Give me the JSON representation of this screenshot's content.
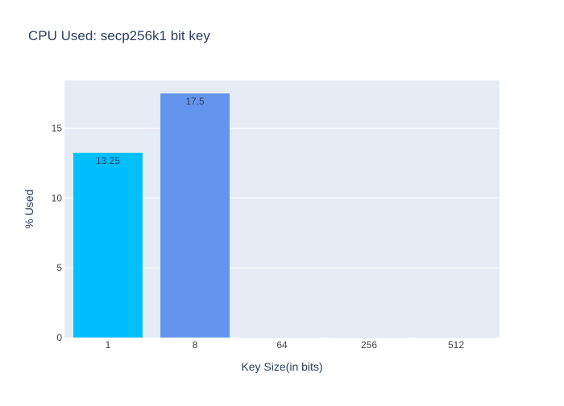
{
  "chart_data": {
    "type": "bar",
    "title": "CPU Used: secp256k1 bit key",
    "xlabel": "Key Size(in bits)",
    "ylabel": "% Used",
    "categories": [
      "1",
      "8",
      "64",
      "256",
      "512"
    ],
    "values": [
      13.25,
      17.5,
      0,
      0,
      0
    ],
    "data_labels": [
      "13.25",
      "17.5",
      "",
      "",
      ""
    ],
    "bar_colors": [
      "#00bfff",
      "#6495ed",
      "#e5ecf6",
      "#e5ecf6",
      "#e5ecf6"
    ],
    "ylim": [
      0,
      18.42
    ],
    "yticks": [
      0,
      5,
      10,
      15
    ],
    "ytick_labels": [
      "0",
      "5",
      "10",
      "15"
    ],
    "grid": true,
    "legend": false,
    "colors": {
      "plot_background": "#e5ecf6",
      "gridline": "#ffffff",
      "text": "#2a3f5f",
      "tick_text": "#444444"
    }
  }
}
